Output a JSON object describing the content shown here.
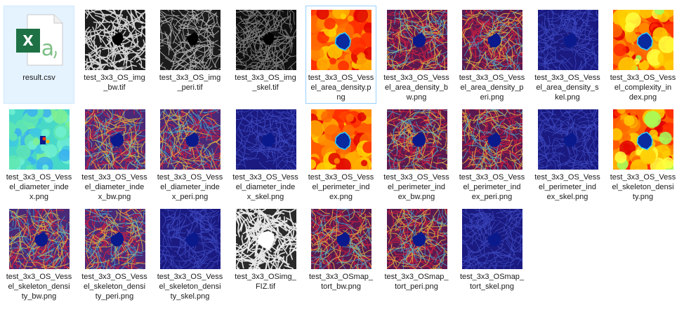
{
  "window": {
    "view": "Large icons"
  },
  "files": [
    {
      "name": "result.csv",
      "lines": [
        "result.csv"
      ],
      "kind": "csv",
      "icon": "excel-csv-icon",
      "selected": true,
      "focused": false
    },
    {
      "name": "test_3x3_OS_img_bw.tif",
      "lines": [
        "test_3x3_OS_img",
        "_bw.tif"
      ],
      "kind": "tif-bw",
      "icon": "grayscale-vessel-thumbnail"
    },
    {
      "name": "test_3x3_OS_img_peri.tif",
      "lines": [
        "test_3x3_OS_img",
        "_peri.tif"
      ],
      "kind": "tif-peri",
      "icon": "grayscale-vessel-thumbnail"
    },
    {
      "name": "test_3x3_OS_img_skel.tif",
      "lines": [
        "test_3x3_OS_img",
        "_skel.tif"
      ],
      "kind": "tif-skel",
      "icon": "grayscale-vessel-thumbnail"
    },
    {
      "name": "test_3x3_OS_Vessel_area_density.png",
      "lines": [
        "test_3x3_OS_Vess",
        "el_area_density.p",
        "ng"
      ],
      "kind": "heat",
      "icon": "jet-heatmap-thumbnail",
      "selected": false,
      "focused": true
    },
    {
      "name": "test_3x3_OS_Vessel_area_density_bw.png",
      "lines": [
        "test_3x3_OS_Vess",
        "el_area_density_b",
        "w.png"
      ],
      "kind": "map-bw",
      "icon": "vessel-map-thumbnail"
    },
    {
      "name": "test_3x3_OS_Vessel_area_density_peri.png",
      "lines": [
        "test_3x3_OS_Vess",
        "el_area_density_p",
        "eri.png"
      ],
      "kind": "map-peri",
      "icon": "vessel-map-thumbnail"
    },
    {
      "name": "test_3x3_OS_Vessel_area_density_skel.png",
      "lines": [
        "test_3x3_OS_Vess",
        "el_area_density_s",
        "kel.png"
      ],
      "kind": "map-skel",
      "icon": "vessel-map-thumbnail"
    },
    {
      "name": "test_3x3_OS_Vessel_complexity_index.png",
      "lines": [
        "test_3x3_OS_Vess",
        "el_complexity_in",
        "dex.png"
      ],
      "kind": "heat2",
      "icon": "jet-heatmap-thumbnail"
    },
    {
      "name": "test_3x3_OS_Vessel_diameter_index.png",
      "lines": [
        "test_3x3_OS_Vess",
        "el_diameter_inde",
        "x.png"
      ],
      "kind": "diameter",
      "icon": "jet-heatmap-thumbnail"
    },
    {
      "name": "test_3x3_OS_Vessel_diameter_index_bw.png",
      "lines": [
        "test_3x3_OS_Vess",
        "el_diameter_inde",
        "x_bw.png"
      ],
      "kind": "map-bw2",
      "icon": "vessel-map-thumbnail"
    },
    {
      "name": "test_3x3_OS_Vessel_diameter_index_peri.png",
      "lines": [
        "test_3x3_OS_Vess",
        "el_diameter_inde",
        "x_peri.png"
      ],
      "kind": "map-peri2",
      "icon": "vessel-map-thumbnail"
    },
    {
      "name": "test_3x3_OS_Vessel_diameter_index_skel.png",
      "lines": [
        "test_3x3_OS_Vess",
        "el_diameter_inde",
        "x_skel.png"
      ],
      "kind": "map-skel",
      "icon": "vessel-map-thumbnail"
    },
    {
      "name": "test_3x3_OS_Vessel_perimeter_index.png",
      "lines": [
        "test_3x3_OS_Vess",
        "el_perimeter_ind",
        "ex.png"
      ],
      "kind": "heat",
      "icon": "jet-heatmap-thumbnail"
    },
    {
      "name": "test_3x3_OS_Vessel_perimeter_index_bw.png",
      "lines": [
        "test_3x3_OS_Vess",
        "el_perimeter_ind",
        "ex_bw.png"
      ],
      "kind": "map-bw",
      "icon": "vessel-map-thumbnail"
    },
    {
      "name": "test_3x3_OS_Vessel_perimeter_index_peri.png",
      "lines": [
        "test_3x3_OS_Vess",
        "el_perimeter_ind",
        "ex_peri.png"
      ],
      "kind": "map-peri",
      "icon": "vessel-map-thumbnail"
    },
    {
      "name": "test_3x3_OS_Vessel_perimeter_index_skel.png",
      "lines": [
        "test_3x3_OS_Vess",
        "el_perimeter_ind",
        "ex_skel.png"
      ],
      "kind": "map-skel",
      "icon": "vessel-map-thumbnail"
    },
    {
      "name": "test_3x3_OS_Vessel_skeleton_density.png",
      "lines": [
        "test_3x3_OS_Vess",
        "el_skeleton_densi",
        "ty.png"
      ],
      "kind": "heat2",
      "icon": "jet-heatmap-thumbnail"
    },
    {
      "name": "test_3x3_OS_Vessel_skeleton_density_bw.png",
      "lines": [
        "test_3x3_OS_Vess",
        "el_skeleton_densi",
        "ty_bw.png"
      ],
      "kind": "map-bw2",
      "icon": "vessel-map-thumbnail"
    },
    {
      "name": "test_3x3_OS_Vessel_skeleton_density_peri.png",
      "lines": [
        "test_3x3_OS_Vess",
        "el_skeleton_densi",
        "ty_peri.png"
      ],
      "kind": "map-peri2",
      "icon": "vessel-map-thumbnail"
    },
    {
      "name": "test_3x3_OS_Vessel_skeleton_density_skel.png",
      "lines": [
        "test_3x3_OS_Vess",
        "el_skeleton_densi",
        "ty_skel.png"
      ],
      "kind": "map-skel",
      "icon": "vessel-map-thumbnail"
    },
    {
      "name": "test_3x3_OSimg_FIZ.tif",
      "lines": [
        "test_3x3_OSimg_",
        "FIZ.tif"
      ],
      "kind": "fiz",
      "icon": "grayscale-vessel-thumbnail"
    },
    {
      "name": "test_3x3_OSmap_tort_bw.png",
      "lines": [
        "test_3x3_OSmap_",
        "tort_bw.png"
      ],
      "kind": "map-bw",
      "icon": "vessel-map-thumbnail"
    },
    {
      "name": "test_3x3_OSmap_tort_peri.png",
      "lines": [
        "test_3x3_OSmap_",
        "tort_peri.png"
      ],
      "kind": "map-peri",
      "icon": "vessel-map-thumbnail"
    },
    {
      "name": "test_3x3_OSmap_tort_skel.png",
      "lines": [
        "test_3x3_OSmap_",
        "tort_skel.png"
      ],
      "kind": "map-skel",
      "icon": "vessel-map-thumbnail"
    }
  ],
  "colors": {
    "selection_bg": "#e5f3ff",
    "selection_border": "#cce8ff",
    "focus_border": "#99d1ff",
    "excel_green": "#1e7145",
    "label_text": "#1a1a1a",
    "fovea_blue": "#0a1a8c"
  }
}
